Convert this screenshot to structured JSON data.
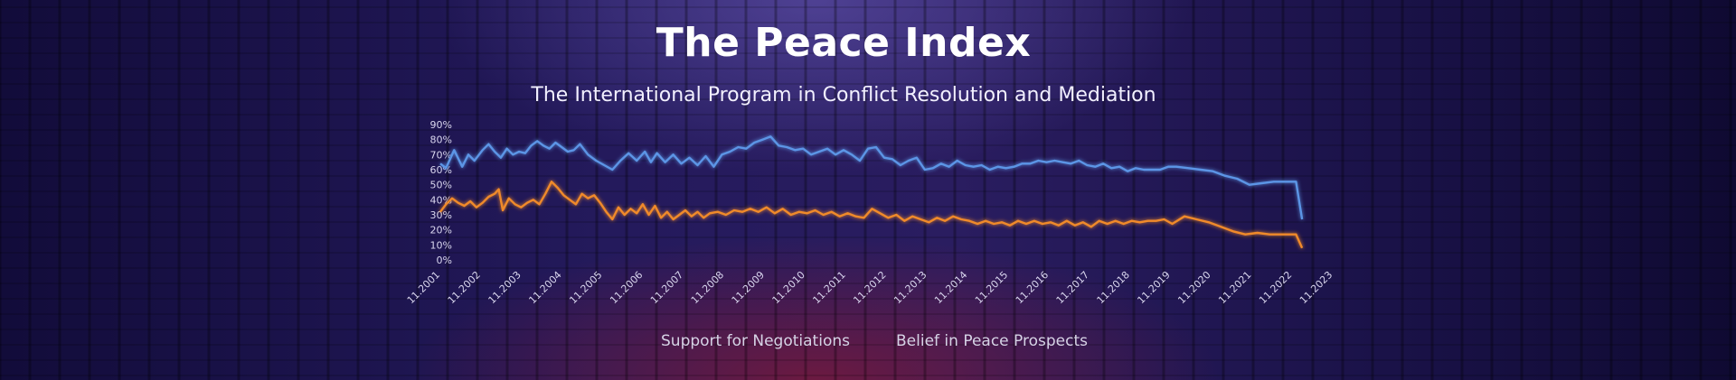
{
  "header": {
    "title": "The Peace Index",
    "subtitle": "The International Program in Conflict Resolution and Mediation"
  },
  "colors": {
    "series_1": "#5b95e6",
    "series_2": "#f08a2a",
    "background": "#1f1650"
  },
  "chart_data": {
    "type": "line",
    "title": "The Peace Index",
    "subtitle": "The International Program in Conflict Resolution and Mediation",
    "xlabel": "",
    "ylabel": "",
    "ylim": [
      0,
      90
    ],
    "y_ticks": [
      "0%",
      "10%",
      "20%",
      "30%",
      "40%",
      "50%",
      "60%",
      "70%",
      "80%",
      "90%"
    ],
    "x_ticks": [
      "11.2001",
      "11.2002",
      "11.2003",
      "11.2004",
      "11.2005",
      "11.2006",
      "11.2007",
      "11.2008",
      "11.2009",
      "11.2010",
      "11.2011",
      "11.2012",
      "11.2013",
      "11.2014",
      "11.2015",
      "11.2016",
      "11.2017",
      "11.2018",
      "11.2019",
      "11.2020",
      "11.2021",
      "11.2022",
      "11.2023"
    ],
    "grid": false,
    "legend": "bottom",
    "series": [
      {
        "name": "Support for Negotiations",
        "values": [
          [
            2001.86,
            64
          ],
          [
            2002.0,
            61
          ],
          [
            2002.2,
            73
          ],
          [
            2002.4,
            62
          ],
          [
            2002.55,
            70
          ],
          [
            2002.7,
            66
          ],
          [
            2002.9,
            73
          ],
          [
            2003.05,
            77
          ],
          [
            2003.2,
            72
          ],
          [
            2003.35,
            68
          ],
          [
            2003.5,
            74
          ],
          [
            2003.65,
            70
          ],
          [
            2003.8,
            72
          ],
          [
            2003.95,
            71
          ],
          [
            2004.1,
            76
          ],
          [
            2004.25,
            79
          ],
          [
            2004.4,
            76
          ],
          [
            2004.55,
            74
          ],
          [
            2004.7,
            78
          ],
          [
            2004.85,
            75
          ],
          [
            2005.0,
            72
          ],
          [
            2005.15,
            73
          ],
          [
            2005.3,
            77
          ],
          [
            2005.5,
            70
          ],
          [
            2005.7,
            66
          ],
          [
            2005.9,
            63
          ],
          [
            2006.1,
            60
          ],
          [
            2006.3,
            66
          ],
          [
            2006.5,
            71
          ],
          [
            2006.7,
            66
          ],
          [
            2006.9,
            72
          ],
          [
            2007.05,
            65
          ],
          [
            2007.2,
            71
          ],
          [
            2007.4,
            65
          ],
          [
            2007.6,
            70
          ],
          [
            2007.8,
            64
          ],
          [
            2008.0,
            68
          ],
          [
            2008.2,
            63
          ],
          [
            2008.4,
            69
          ],
          [
            2008.6,
            62
          ],
          [
            2008.8,
            70
          ],
          [
            2009.0,
            72
          ],
          [
            2009.2,
            75
          ],
          [
            2009.4,
            74
          ],
          [
            2009.6,
            78
          ],
          [
            2009.8,
            80
          ],
          [
            2010.0,
            82
          ],
          [
            2010.2,
            76
          ],
          [
            2010.4,
            75
          ],
          [
            2010.6,
            73
          ],
          [
            2010.8,
            74
          ],
          [
            2011.0,
            70
          ],
          [
            2011.2,
            72
          ],
          [
            2011.4,
            74
          ],
          [
            2011.6,
            70
          ],
          [
            2011.8,
            73
          ],
          [
            2012.0,
            70
          ],
          [
            2012.2,
            66
          ],
          [
            2012.4,
            74
          ],
          [
            2012.6,
            75
          ],
          [
            2012.8,
            68
          ],
          [
            2013.0,
            67
          ],
          [
            2013.2,
            63
          ],
          [
            2013.4,
            66
          ],
          [
            2013.6,
            68
          ],
          [
            2013.8,
            60
          ],
          [
            2014.0,
            61
          ],
          [
            2014.2,
            64
          ],
          [
            2014.4,
            62
          ],
          [
            2014.6,
            66
          ],
          [
            2014.8,
            63
          ],
          [
            2015.0,
            62
          ],
          [
            2015.2,
            63
          ],
          [
            2015.4,
            60
          ],
          [
            2015.6,
            62
          ],
          [
            2015.8,
            61
          ],
          [
            2016.0,
            62
          ],
          [
            2016.2,
            64
          ],
          [
            2016.4,
            64
          ],
          [
            2016.6,
            66
          ],
          [
            2016.8,
            65
          ],
          [
            2017.0,
            66
          ],
          [
            2017.2,
            65
          ],
          [
            2017.4,
            64
          ],
          [
            2017.6,
            66
          ],
          [
            2017.8,
            63
          ],
          [
            2018.0,
            62
          ],
          [
            2018.2,
            64
          ],
          [
            2018.4,
            61
          ],
          [
            2018.6,
            62
          ],
          [
            2018.8,
            59
          ],
          [
            2019.0,
            61
          ],
          [
            2019.2,
            60
          ],
          [
            2019.4,
            60
          ],
          [
            2019.6,
            60
          ],
          [
            2019.8,
            62
          ],
          [
            2020.0,
            62
          ],
          [
            2020.3,
            61
          ],
          [
            2020.6,
            60
          ],
          [
            2020.9,
            59
          ],
          [
            2021.2,
            56
          ],
          [
            2021.5,
            54
          ],
          [
            2021.8,
            50
          ],
          [
            2022.1,
            51
          ],
          [
            2022.4,
            52
          ],
          [
            2022.7,
            52
          ],
          [
            2022.95,
            52
          ],
          [
            2023.1,
            27
          ]
        ]
      },
      {
        "name": "Belief in Peace Prospects",
        "values": [
          [
            2001.86,
            32
          ],
          [
            2002.0,
            37
          ],
          [
            2002.15,
            41
          ],
          [
            2002.3,
            38
          ],
          [
            2002.45,
            36
          ],
          [
            2002.6,
            39
          ],
          [
            2002.75,
            35
          ],
          [
            2002.9,
            38
          ],
          [
            2003.05,
            42
          ],
          [
            2003.2,
            44
          ],
          [
            2003.3,
            47
          ],
          [
            2003.4,
            33
          ],
          [
            2003.55,
            41
          ],
          [
            2003.7,
            37
          ],
          [
            2003.85,
            35
          ],
          [
            2004.0,
            38
          ],
          [
            2004.15,
            40
          ],
          [
            2004.3,
            37
          ],
          [
            2004.45,
            44
          ],
          [
            2004.6,
            52
          ],
          [
            2004.75,
            48
          ],
          [
            2004.9,
            43
          ],
          [
            2005.05,
            40
          ],
          [
            2005.2,
            37
          ],
          [
            2005.35,
            44
          ],
          [
            2005.5,
            41
          ],
          [
            2005.65,
            43
          ],
          [
            2005.8,
            38
          ],
          [
            2005.95,
            32
          ],
          [
            2006.1,
            27
          ],
          [
            2006.25,
            35
          ],
          [
            2006.4,
            30
          ],
          [
            2006.55,
            34
          ],
          [
            2006.7,
            31
          ],
          [
            2006.85,
            37
          ],
          [
            2007.0,
            30
          ],
          [
            2007.15,
            36
          ],
          [
            2007.3,
            28
          ],
          [
            2007.45,
            32
          ],
          [
            2007.6,
            27
          ],
          [
            2007.75,
            30
          ],
          [
            2007.9,
            33
          ],
          [
            2008.05,
            29
          ],
          [
            2008.2,
            32
          ],
          [
            2008.35,
            28
          ],
          [
            2008.5,
            31
          ],
          [
            2008.7,
            32
          ],
          [
            2008.9,
            30
          ],
          [
            2009.1,
            33
          ],
          [
            2009.3,
            32
          ],
          [
            2009.5,
            34
          ],
          [
            2009.7,
            32
          ],
          [
            2009.9,
            35
          ],
          [
            2010.1,
            31
          ],
          [
            2010.3,
            34
          ],
          [
            2010.5,
            30
          ],
          [
            2010.7,
            32
          ],
          [
            2010.9,
            31
          ],
          [
            2011.1,
            33
          ],
          [
            2011.3,
            30
          ],
          [
            2011.5,
            32
          ],
          [
            2011.7,
            29
          ],
          [
            2011.9,
            31
          ],
          [
            2012.1,
            29
          ],
          [
            2012.3,
            28
          ],
          [
            2012.5,
            34
          ],
          [
            2012.7,
            31
          ],
          [
            2012.9,
            28
          ],
          [
            2013.1,
            30
          ],
          [
            2013.3,
            26
          ],
          [
            2013.5,
            29
          ],
          [
            2013.7,
            27
          ],
          [
            2013.9,
            25
          ],
          [
            2014.1,
            28
          ],
          [
            2014.3,
            26
          ],
          [
            2014.5,
            29
          ],
          [
            2014.7,
            27
          ],
          [
            2014.9,
            26
          ],
          [
            2015.1,
            24
          ],
          [
            2015.3,
            26
          ],
          [
            2015.5,
            24
          ],
          [
            2015.7,
            25
          ],
          [
            2015.9,
            23
          ],
          [
            2016.1,
            26
          ],
          [
            2016.3,
            24
          ],
          [
            2016.5,
            26
          ],
          [
            2016.7,
            24
          ],
          [
            2016.9,
            25
          ],
          [
            2017.1,
            23
          ],
          [
            2017.3,
            26
          ],
          [
            2017.5,
            23
          ],
          [
            2017.7,
            25
          ],
          [
            2017.9,
            22
          ],
          [
            2018.1,
            26
          ],
          [
            2018.3,
            24
          ],
          [
            2018.5,
            26
          ],
          [
            2018.7,
            24
          ],
          [
            2018.9,
            26
          ],
          [
            2019.1,
            25
          ],
          [
            2019.3,
            26
          ],
          [
            2019.5,
            26
          ],
          [
            2019.7,
            27
          ],
          [
            2019.9,
            24
          ],
          [
            2020.2,
            29
          ],
          [
            2020.5,
            27
          ],
          [
            2020.8,
            25
          ],
          [
            2021.1,
            22
          ],
          [
            2021.4,
            19
          ],
          [
            2021.7,
            17
          ],
          [
            2022.0,
            18
          ],
          [
            2022.3,
            17
          ],
          [
            2022.6,
            17
          ],
          [
            2022.95,
            17
          ],
          [
            2023.1,
            8
          ]
        ]
      }
    ]
  }
}
